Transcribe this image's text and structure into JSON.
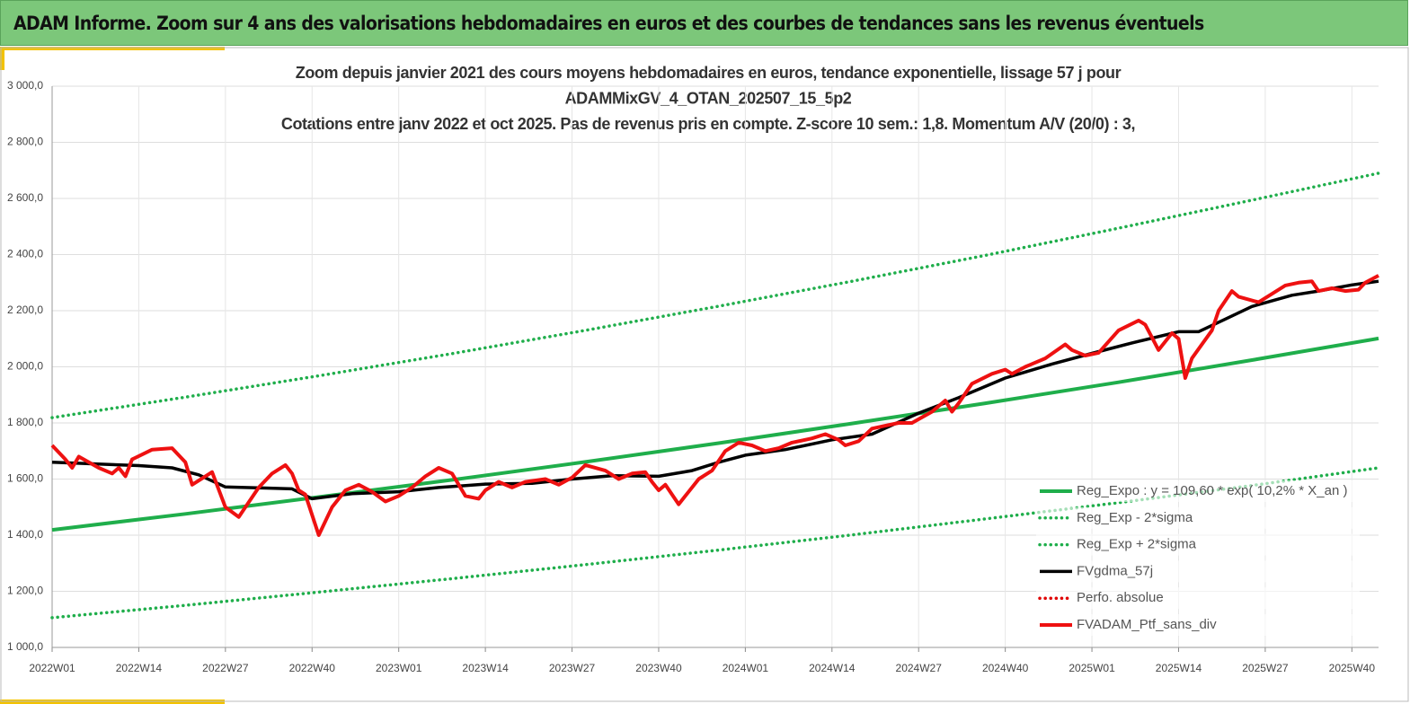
{
  "header": {
    "title": "ADAM Informe. Zoom sur 4 ans des valorisations hebdomadaires en euros et des courbes de tendances sans les revenus éventuels"
  },
  "chart_data": {
    "type": "line",
    "title": [
      "Zoom depuis janvier 2021 des cours moyens hebdomadaires  en euros, tendance exponentielle, lissage 57 j pour",
      "ADAMMixGV_4_OTAN_202507_15_5p2",
      "Cotations  entre janv 2022 et oct 2025. Pas de revenus pris en compte. Z-score 10 sem.: 1,8. Momentum A/V (20/0) : 3,"
    ],
    "xlim": [
      0,
      199
    ],
    "xticks": [
      {
        "value": 0,
        "label": "2022W01"
      },
      {
        "value": 13,
        "label": "2022W14"
      },
      {
        "value": 26,
        "label": "2022W27"
      },
      {
        "value": 39,
        "label": "2022W40"
      },
      {
        "value": 52,
        "label": "2023W01"
      },
      {
        "value": 65,
        "label": "2023W14"
      },
      {
        "value": 78,
        "label": "2023W27"
      },
      {
        "value": 91,
        "label": "2023W40"
      },
      {
        "value": 104,
        "label": "2024W01"
      },
      {
        "value": 117,
        "label": "2024W14"
      },
      {
        "value": 130,
        "label": "2024W27"
      },
      {
        "value": 143,
        "label": "2024W40"
      },
      {
        "value": 156,
        "label": "2025W01"
      },
      {
        "value": 169,
        "label": "2025W14"
      },
      {
        "value": 182,
        "label": "2025W27"
      },
      {
        "value": 195,
        "label": "2025W40"
      }
    ],
    "ylim": [
      1000,
      3000
    ],
    "yticks": [
      {
        "value": 1000,
        "label": "1 000,0"
      },
      {
        "value": 1200,
        "label": "1 200,0"
      },
      {
        "value": 1400,
        "label": "1 400,0"
      },
      {
        "value": 1600,
        "label": "1 600,0"
      },
      {
        "value": 1800,
        "label": "1 800,0"
      },
      {
        "value": 2000,
        "label": "2 000,0"
      },
      {
        "value": 2200,
        "label": "2 200,0"
      },
      {
        "value": 2400,
        "label": "2 400,0"
      },
      {
        "value": 2600,
        "label": "2 600,0"
      },
      {
        "value": 2800,
        "label": "2 800,0"
      },
      {
        "value": 3000,
        "label": "3 000,0"
      }
    ],
    "grid": true,
    "legend": "lower right",
    "series": [
      {
        "name": "Reg_Expo : y = 109,60 * exp( 10,2% *  X_an )",
        "color": "#1fae4b",
        "style": "solid",
        "x": [
          0,
          20,
          40,
          60,
          80,
          100,
          120,
          140,
          160,
          180,
          199
        ],
        "values": [
          1419,
          1476,
          1536,
          1597,
          1661,
          1728,
          1798,
          1870,
          1945,
          2024,
          2101
        ]
      },
      {
        "name": "Reg_Exp - 2*sigma",
        "color": "#1fae4b",
        "style": "dotted",
        "x": [
          0,
          20,
          40,
          60,
          80,
          100,
          120,
          140,
          160,
          180,
          199
        ],
        "values": [
          1106,
          1150,
          1197,
          1245,
          1295,
          1347,
          1401,
          1458,
          1516,
          1577,
          1640
        ]
      },
      {
        "name": "Reg_Exp + 2*sigma",
        "color": "#1fae4b",
        "style": "dotted",
        "x": [
          0,
          20,
          40,
          60,
          80,
          100,
          120,
          140,
          160,
          180,
          199
        ],
        "values": [
          1819,
          1892,
          1968,
          2047,
          2130,
          2216,
          2305,
          2397,
          2494,
          2594,
          2690
        ]
      },
      {
        "name": "FVgdma_57j",
        "color": "#000000",
        "style": "solid",
        "x": [
          0,
          13,
          18,
          22,
          26,
          32,
          36,
          39,
          45,
          52,
          58,
          65,
          72,
          78,
          84,
          91,
          96,
          100,
          104,
          110,
          117,
          123,
          130,
          136,
          143,
          150,
          156,
          162,
          169,
          172,
          176,
          180,
          186,
          190,
          195,
          199
        ],
        "values": [
          1660,
          1648,
          1640,
          1615,
          1572,
          1568,
          1565,
          1530,
          1548,
          1555,
          1570,
          1582,
          1585,
          1600,
          1612,
          1610,
          1630,
          1660,
          1685,
          1705,
          1740,
          1760,
          1835,
          1890,
          1960,
          2010,
          2048,
          2085,
          2125,
          2125,
          2170,
          2215,
          2255,
          2270,
          2292,
          2305
        ]
      },
      {
        "name": "Perfo. absolue",
        "color": "#e00000",
        "style": "dotted",
        "x": [],
        "values": []
      },
      {
        "name": "FVADAM_Ptf_sans_div",
        "color": "#ee1111",
        "style": "solid",
        "x": [
          0,
          2,
          3,
          4,
          7,
          9,
          10,
          11,
          12,
          15,
          18,
          20,
          21,
          23,
          24,
          26,
          28,
          29,
          31,
          33,
          35,
          36,
          37,
          38,
          40,
          42,
          44,
          46,
          48,
          50,
          52,
          54,
          56,
          58,
          60,
          62,
          64,
          65,
          67,
          69,
          71,
          74,
          76,
          78,
          80,
          83,
          85,
          87,
          89,
          90,
          91,
          92,
          94,
          95,
          97,
          99,
          101,
          103,
          105,
          107,
          109,
          111,
          114,
          116,
          118,
          119,
          121,
          123,
          125,
          127,
          129,
          132,
          134,
          135,
          136,
          138,
          141,
          143,
          144,
          146,
          149,
          152,
          153,
          155,
          157,
          160,
          163,
          164,
          166,
          168,
          169,
          170,
          171,
          174,
          175,
          177,
          178,
          181,
          183,
          185,
          187,
          189,
          190,
          192,
          194,
          196,
          197,
          199
        ],
        "values": [
          1720,
          1670,
          1640,
          1680,
          1640,
          1620,
          1640,
          1610,
          1670,
          1705,
          1710,
          1660,
          1580,
          1610,
          1625,
          1500,
          1465,
          1500,
          1570,
          1620,
          1650,
          1620,
          1560,
          1545,
          1400,
          1500,
          1560,
          1580,
          1555,
          1520,
          1540,
          1570,
          1610,
          1640,
          1620,
          1540,
          1530,
          1560,
          1590,
          1570,
          1590,
          1600,
          1580,
          1605,
          1650,
          1630,
          1600,
          1620,
          1625,
          1590,
          1560,
          1580,
          1510,
          1540,
          1600,
          1630,
          1700,
          1730,
          1720,
          1700,
          1710,
          1730,
          1745,
          1760,
          1740,
          1720,
          1735,
          1780,
          1790,
          1800,
          1800,
          1840,
          1880,
          1840,
          1870,
          1940,
          1975,
          1990,
          1975,
          2000,
          2030,
          2080,
          2060,
          2040,
          2050,
          2130,
          2165,
          2150,
          2060,
          2120,
          2100,
          1960,
          2030,
          2130,
          2200,
          2270,
          2250,
          2230,
          2260,
          2290,
          2300,
          2305,
          2270,
          2280,
          2270,
          2275,
          2300,
          2325
        ]
      }
    ]
  }
}
